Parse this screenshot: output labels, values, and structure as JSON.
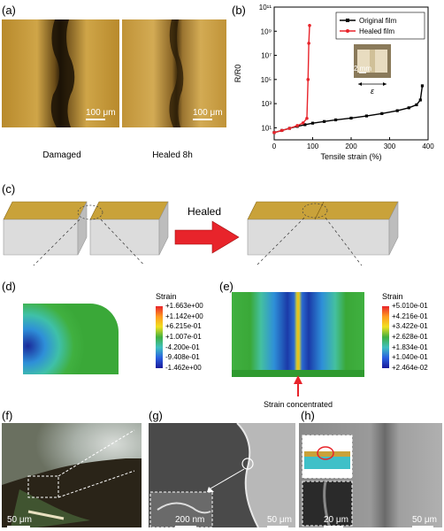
{
  "panel_labels": {
    "a": "(a)",
    "b": "(b)",
    "c": "(c)",
    "d": "(d)",
    "e": "(e)",
    "f": "(f)",
    "g": "(g)",
    "h": "(h)"
  },
  "panel_a": {
    "damaged_caption": "Damaged",
    "healed_caption": "Healed 8h",
    "scalebar_damaged": "100 μm",
    "scalebar_healed": "100 μm"
  },
  "chart_data": {
    "type": "line",
    "xlabel": "Tensile strain (%)",
    "ylabel": "R/R0",
    "yscale": "log",
    "xlim": [
      0,
      400
    ],
    "ylim": [
      1,
      100000000000
    ],
    "x_ticks": [
      "0",
      "100",
      "200",
      "300",
      "400"
    ],
    "y_ticks": [
      "10¹",
      "10³",
      "10⁵",
      "10⁷",
      "10⁹",
      "10¹¹"
    ],
    "legend_position": "top-right",
    "series": [
      {
        "name": "Original film",
        "color": "#000000",
        "x": [
          0,
          20,
          40,
          60,
          80,
          100,
          130,
          160,
          200,
          240,
          280,
          320,
          350,
          370,
          380,
          385
        ],
        "y": [
          4,
          6,
          9,
          13,
          18,
          24,
          33,
          45,
          63,
          95,
          150,
          260,
          450,
          800,
          2000,
          30000
        ]
      },
      {
        "name": "Healed film",
        "color": "#e8242b",
        "x": [
          0,
          20,
          40,
          60,
          75,
          85,
          88,
          90,
          92
        ],
        "y": [
          4,
          6,
          9,
          15,
          25,
          60,
          100000,
          100000000,
          3000000000
        ]
      }
    ],
    "inset": {
      "scalebar": "2 mm",
      "strain_symbol": "ε"
    }
  },
  "panel_c": {
    "healed_label": "Healed"
  },
  "panel_d": {
    "legend_title": "Strain",
    "colorbar": [
      "+1.663e+00",
      "+1.142e+00",
      "+6.215e-01",
      "+1.007e-01",
      "-4.200e-01",
      "-9.408e-01",
      "-1.462e+00"
    ]
  },
  "panel_e": {
    "legend_title": "Strain",
    "colorbar": [
      "+5.010e-01",
      "+4.216e-01",
      "+3.422e-01",
      "+2.628e-01",
      "+1.834e-01",
      "+1.040e-01",
      "+2.464e-02"
    ],
    "annotation": "Strain concentrated"
  },
  "panel_f": {
    "scalebar": "50 μm"
  },
  "panel_g": {
    "scalebar": "50 μm",
    "inset_scalebar": "200 nm"
  },
  "panel_h": {
    "scalebar": "50 μm",
    "inset_scalebar": "20 μm"
  },
  "colors": {
    "gold": "#c9a23a",
    "arrow_red": "#e8242b",
    "block_gray": "#dcdcdc"
  }
}
